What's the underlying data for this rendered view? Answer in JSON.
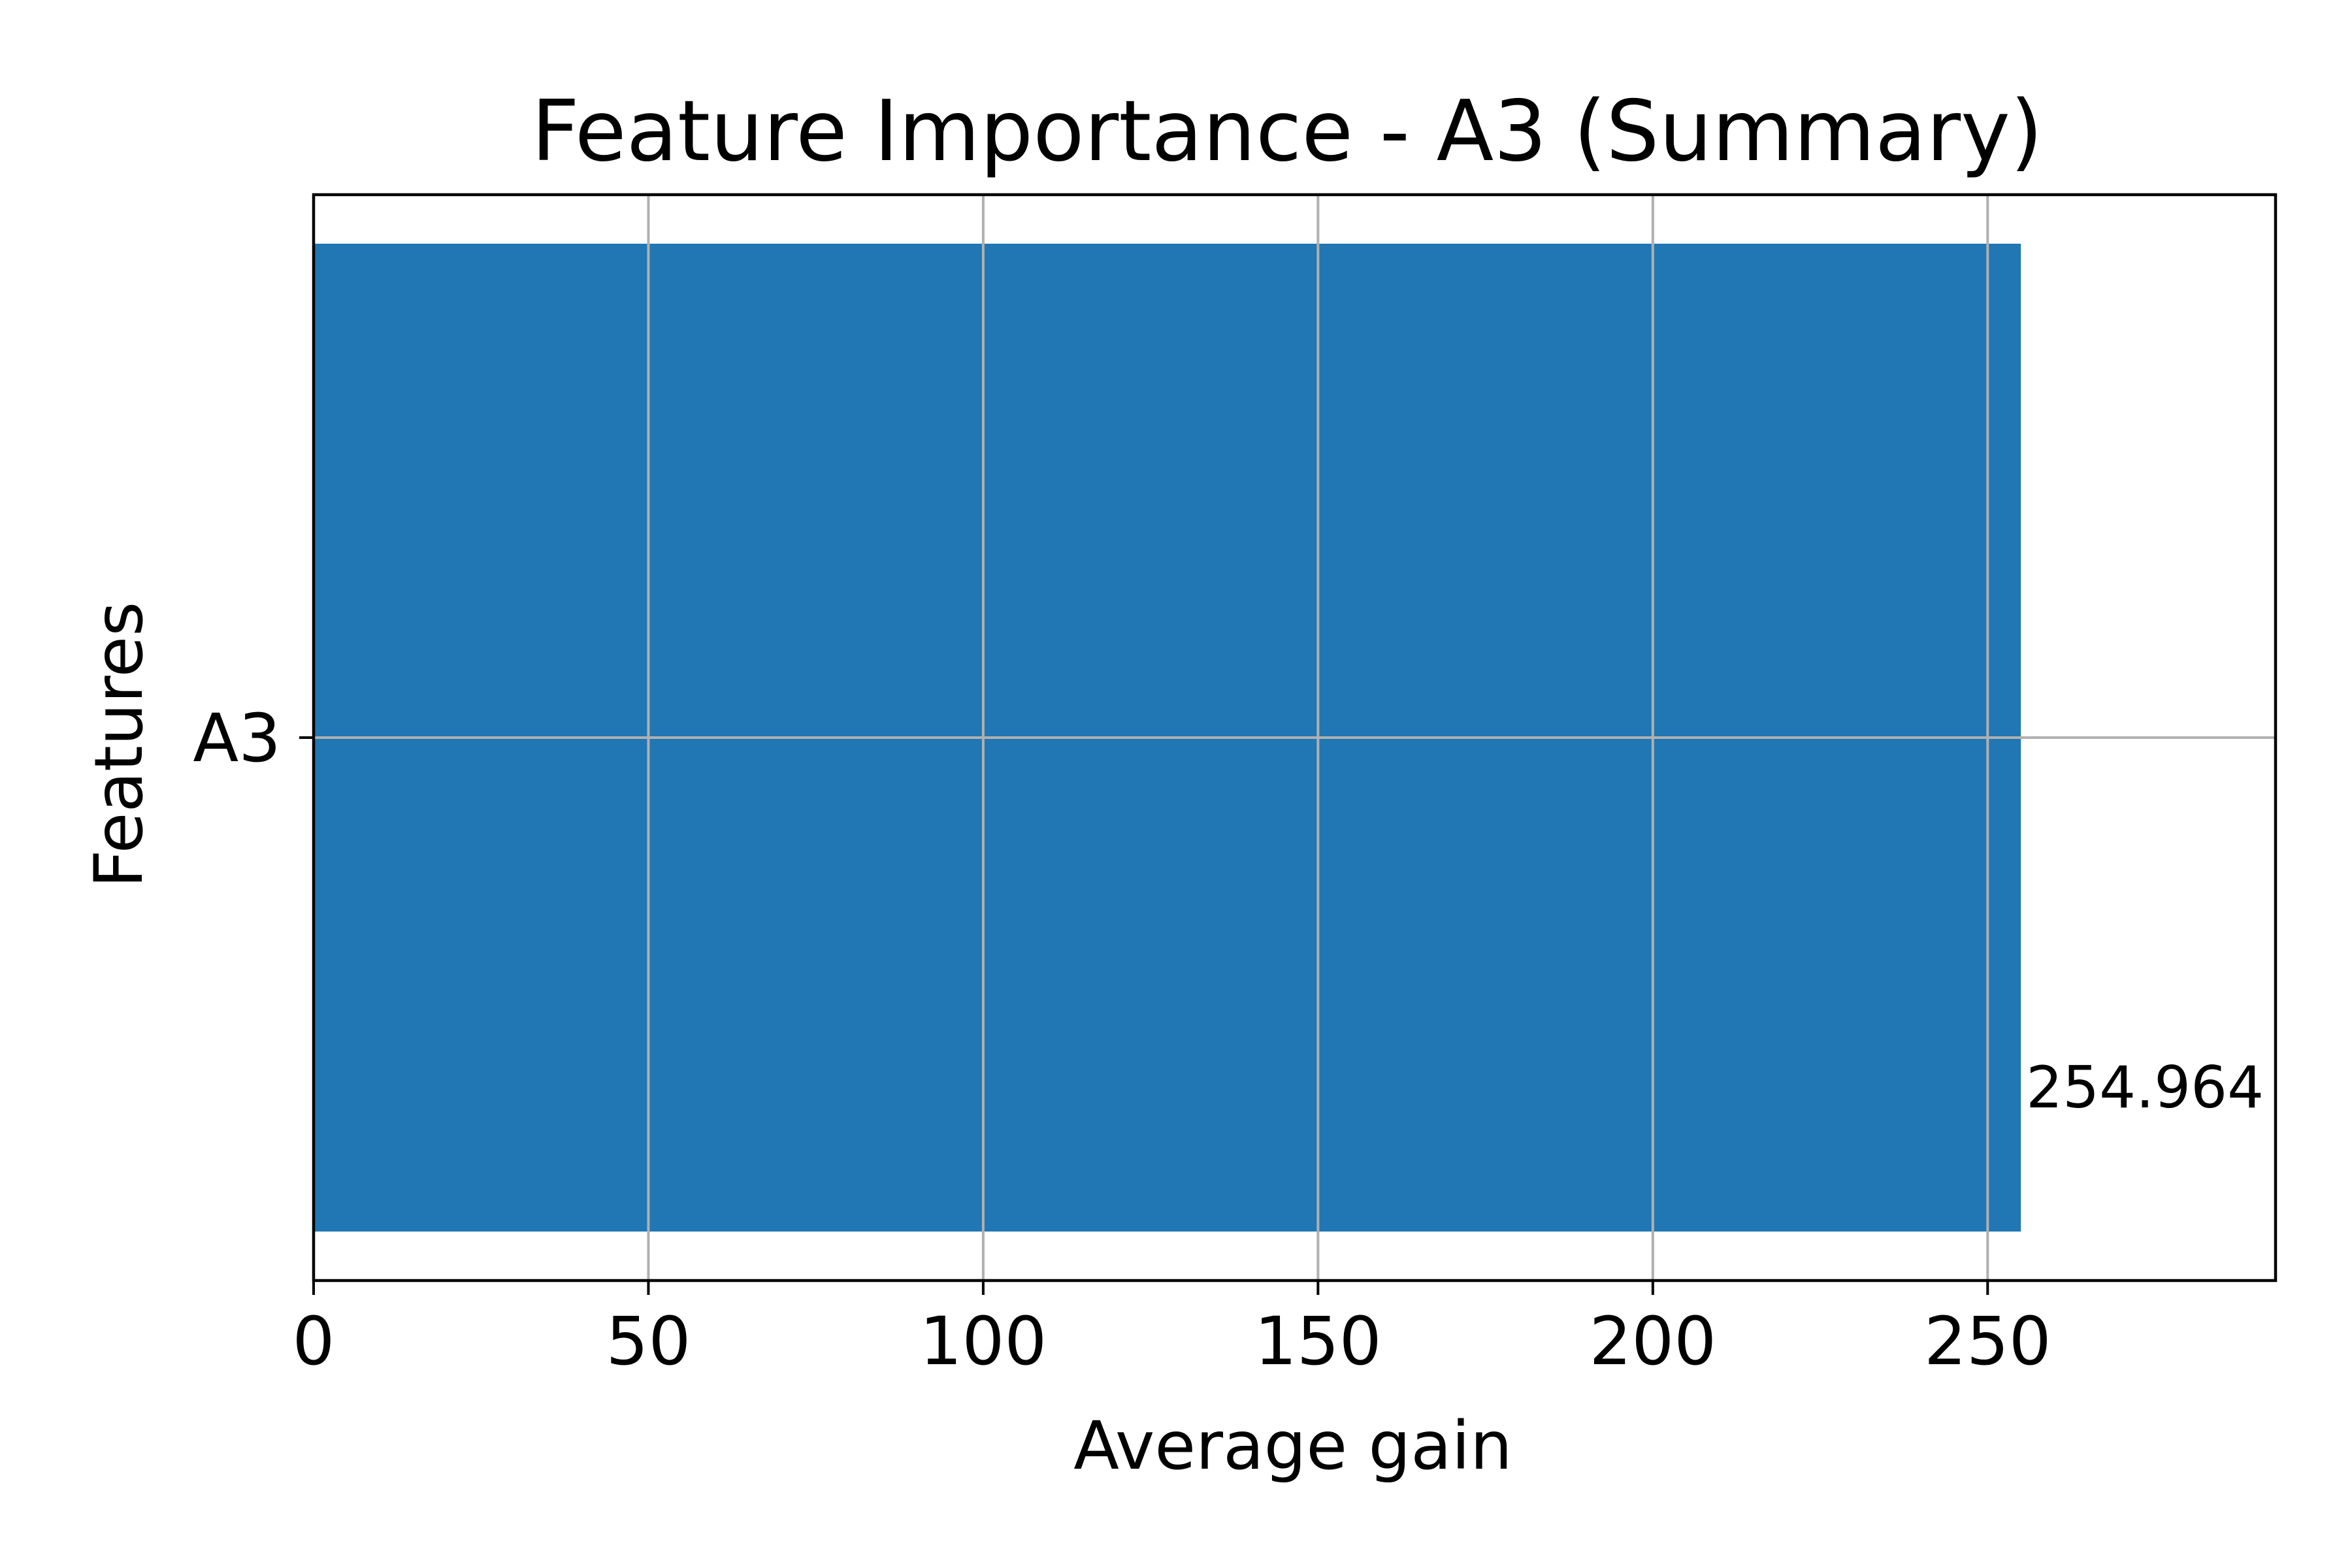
{
  "chart_data": {
    "type": "bar",
    "orientation": "horizontal",
    "title": "Feature Importance - A3 (Summary)",
    "xlabel": "Average gain",
    "ylabel": "Features",
    "categories": [
      "A3"
    ],
    "values": [
      254.964
    ],
    "data_labels": [
      "254.964"
    ],
    "xlim": [
      0,
      293
    ],
    "xticks": [
      0,
      50,
      100,
      150,
      200,
      250
    ],
    "xtick_labels": [
      "0",
      "50",
      "100",
      "150",
      "200",
      "250"
    ],
    "grid": true,
    "bar_color": "#2077b4",
    "grid_color": "#b0b0b0"
  }
}
